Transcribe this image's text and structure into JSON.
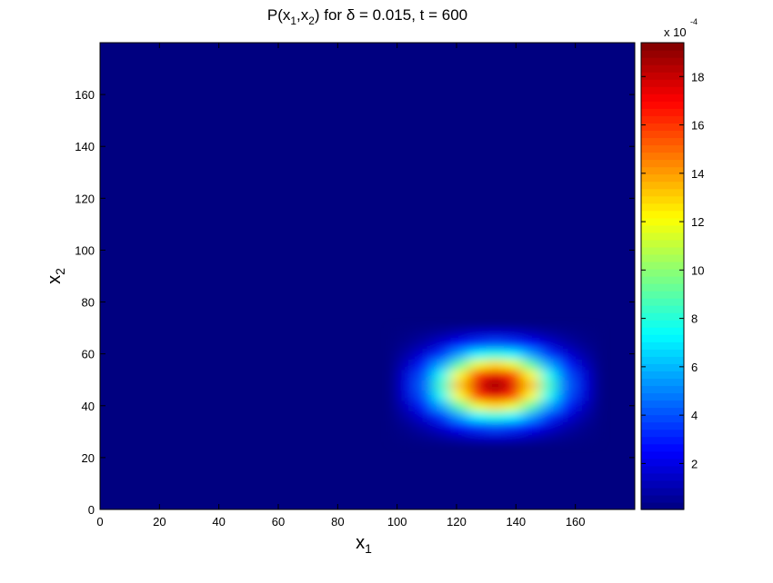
{
  "chart_data": {
    "type": "heatmap",
    "title": [
      "P(x",
      "1",
      ",x",
      "2",
      ") for δ = 0.015, t = 600"
    ],
    "xlabel": [
      "x",
      "1"
    ],
    "ylabel": [
      "x",
      "2"
    ],
    "xlim": [
      0,
      180
    ],
    "ylim": [
      0,
      180
    ],
    "xticks": [
      0,
      20,
      40,
      60,
      80,
      100,
      120,
      140,
      160
    ],
    "yticks": [
      0,
      20,
      40,
      60,
      80,
      100,
      120,
      140,
      160
    ],
    "x": [
      103,
      109,
      115,
      121,
      127,
      133,
      139,
      145,
      151,
      157,
      163
    ],
    "y": [
      28,
      32,
      36,
      40,
      44,
      48,
      52,
      56,
      60,
      64,
      68
    ],
    "values": [
      [
        0.2,
        0.4,
        0.7,
        1.1,
        1.5,
        1.6,
        1.5,
        1.1,
        0.7,
        0.4,
        0.2
      ],
      [
        0.4,
        0.9,
        1.7,
        2.7,
        3.6,
        4.0,
        3.6,
        2.7,
        1.7,
        0.9,
        0.4
      ],
      [
        0.8,
        1.8,
        3.4,
        5.5,
        7.2,
        7.9,
        7.2,
        5.5,
        3.4,
        1.8,
        0.8
      ],
      [
        1.3,
        3.0,
        5.7,
        9.0,
        11.8,
        12.9,
        11.8,
        9.0,
        5.7,
        3.0,
        1.3
      ],
      [
        1.8,
        4.0,
        7.6,
        12.1,
        15.9,
        17.4,
        15.9,
        12.1,
        7.6,
        4.0,
        1.8
      ],
      [
        1.9,
        4.4,
        8.4,
        13.3,
        17.5,
        19.2,
        17.5,
        13.3,
        8.4,
        4.4,
        1.9
      ],
      [
        1.8,
        4.0,
        7.6,
        12.1,
        15.9,
        17.4,
        15.9,
        12.1,
        7.6,
        4.0,
        1.8
      ],
      [
        1.3,
        3.0,
        5.7,
        9.0,
        11.8,
        12.9,
        11.8,
        9.0,
        5.7,
        3.0,
        1.3
      ],
      [
        0.8,
        1.8,
        3.4,
        5.5,
        7.2,
        7.9,
        7.2,
        5.5,
        3.4,
        1.8,
        0.8
      ],
      [
        0.4,
        0.9,
        1.7,
        2.7,
        3.6,
        4.0,
        3.6,
        2.7,
        1.7,
        0.9,
        0.4
      ],
      [
        0.2,
        0.4,
        0.7,
        1.1,
        1.5,
        1.6,
        1.5,
        1.1,
        0.7,
        0.4,
        0.2
      ]
    ],
    "colormap": "jet",
    "clim": [
      0.1,
      19.4
    ],
    "cticks": [
      2,
      4,
      6,
      8,
      10,
      12,
      14,
      16,
      18
    ],
    "colorbar_label": "x 10",
    "colorbar_exponent": "-4",
    "grid": false
  }
}
